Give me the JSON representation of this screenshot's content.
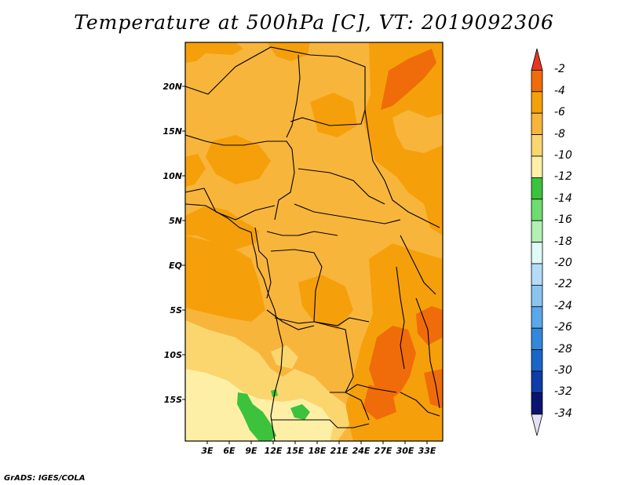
{
  "title": "Temperature at 500hPa [C], VT: 2019092306",
  "footer": "GrADS: IGES/COLA",
  "axes": {
    "lat_labels": [
      "20N",
      "15N",
      "10N",
      "5N",
      "EQ",
      "5S",
      "10S",
      "15S"
    ],
    "lon_labels": [
      "3E",
      "6E",
      "9E",
      "12E",
      "15E",
      "18E",
      "21E",
      "24E",
      "27E",
      "30E",
      "33E"
    ]
  },
  "colorbar": {
    "labels": [
      "-2",
      "-4",
      "-6",
      "-8",
      "-10",
      "-12",
      "-14",
      "-16",
      "-18",
      "-20",
      "-22",
      "-24",
      "-26",
      "-28",
      "-30",
      "-32",
      "-34"
    ],
    "colors": [
      "#e8361e",
      "#f06c0a",
      "#f5a00a",
      "#f8b53c",
      "#fbd66e",
      "#fdf0a6",
      "#3cc23c",
      "#6edc6e",
      "#b4f0b4",
      "#e0fbf6",
      "#b4dcf8",
      "#8cc4f0",
      "#5aa8e8",
      "#3288dc",
      "#1a66c8",
      "#0e3ca8",
      "#0a1470",
      "#e6e0f5"
    ]
  },
  "map": {
    "palette": {
      "c_neg6_to_neg4": "#f5a00a",
      "c_neg8_to_neg6": "#f8b53c",
      "c_neg10_to_neg8": "#fbd66e",
      "c_neg12_to_neg10": "#fdf0a6",
      "c_neg14_to_neg12": "#3cc23c",
      "c_neg4_to_neg2": "#f06c0a",
      "c_warm_core": "#e8361e"
    }
  }
}
